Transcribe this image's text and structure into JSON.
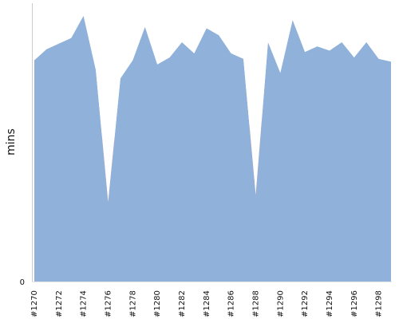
{
  "chart_data": {
    "type": "area",
    "title": "",
    "xlabel": "",
    "ylabel": "mins",
    "ylim": [
      0,
      100
    ],
    "y_tick_labels": [
      "0"
    ],
    "x": [
      "#1270",
      "#1271",
      "#1272",
      "#1273",
      "#1274",
      "#1275",
      "#1276",
      "#1277",
      "#1278",
      "#1279",
      "#1280",
      "#1281",
      "#1282",
      "#1283",
      "#1284",
      "#1285",
      "#1286",
      "#1287",
      "#1288",
      "#1289",
      "#1290",
      "#1291",
      "#1292",
      "#1293",
      "#1294",
      "#1295",
      "#1296",
      "#1297",
      "#1298",
      "#1299"
    ],
    "x_tick_labels": [
      "#1270",
      "#1272",
      "#1274",
      "#1276",
      "#1278",
      "#1280",
      "#1282",
      "#1284",
      "#1286",
      "#1288",
      "#1290",
      "#1292",
      "#1294",
      "#1296",
      "#1298"
    ],
    "values": [
      79.5,
      83.5,
      85.5,
      87.5,
      95.5,
      76.0,
      28.5,
      73.0,
      79.5,
      91.5,
      78.0,
      80.5,
      86.0,
      82.0,
      91.0,
      88.5,
      82.0,
      80.0,
      31.0,
      86.0,
      75.0,
      94.0,
      82.5,
      84.5,
      83.0,
      86.0,
      80.5,
      86.0,
      80.0,
      79.0
    ],
    "failure_points": [
      "#1276",
      "#1288"
    ],
    "colors": {
      "area": "#8fb1da",
      "failure": "#f45a5a",
      "axis": "#cccccc"
    },
    "grid": false,
    "legend": "none"
  }
}
